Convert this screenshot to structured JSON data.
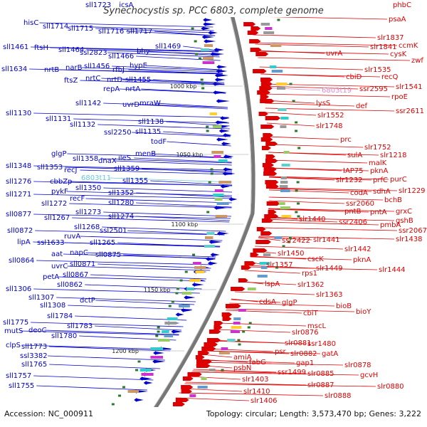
{
  "title": "Synechocystis sp. PCC 6803, complete genome",
  "accession_label": "Accession: NC_000911",
  "summary_label": "Topology: circular; Length: 3,573,470 bp; Genes: 3,222",
  "colors": {
    "minus_strand": "#0000cc",
    "plus_strand": "#dd0000",
    "rna": "#66c8e0",
    "pink": "#e088c8",
    "backbone": "#777777",
    "tick": "#2a7a2a"
  },
  "ruler": [
    "1000 kbp",
    "1050 kbp",
    "1100 kbp",
    "1150 kbp",
    "1200 kbp"
  ],
  "left_labels": [
    {
      "t": "sll1723",
      "v": "icsA",
      "type": "gene"
    },
    {
      "t": "hisC",
      "type": "gene"
    },
    {
      "t": "sll1714",
      "type": "gene"
    },
    {
      "t": "sll1715",
      "type": "gene"
    },
    {
      "t": "sll1716",
      "type": "gene"
    },
    {
      "t": "sll1717",
      "type": "gene"
    },
    {
      "t": "sll1461",
      "type": "gene"
    },
    {
      "t": "ftsH",
      "type": "gene"
    },
    {
      "t": "sll1464",
      "type": "gene"
    },
    {
      "t": "ssl2823",
      "type": "gene"
    },
    {
      "t": "sll1466",
      "type": "gene"
    },
    {
      "t": "bhy",
      "type": "gene"
    },
    {
      "t": "sll1469",
      "type": "gene"
    },
    {
      "t": "sll1634",
      "type": "gene"
    },
    {
      "t": "nrtB",
      "type": "gene"
    },
    {
      "t": "narB",
      "type": "gene"
    },
    {
      "t": "sll1456",
      "type": "gene"
    },
    {
      "t": "rfbJ",
      "type": "gene"
    },
    {
      "t": "hypE",
      "type": "gene"
    },
    {
      "t": "ftsZ",
      "type": "gene"
    },
    {
      "t": "nrtC",
      "type": "gene"
    },
    {
      "t": "nrtD",
      "type": "gene"
    },
    {
      "t": "sll1455",
      "type": "gene"
    },
    {
      "t": "repA",
      "type": "gene"
    },
    {
      "t": "nrtA",
      "type": "gene"
    },
    {
      "t": "sll1142",
      "type": "gene"
    },
    {
      "t": "uvrD",
      "type": "gene"
    },
    {
      "t": "mraW",
      "type": "gene"
    },
    {
      "t": "sll1130",
      "type": "gene"
    },
    {
      "t": "sll1131",
      "type": "gene"
    },
    {
      "t": "sll1132",
      "type": "gene"
    },
    {
      "t": "ssl2250",
      "type": "gene"
    },
    {
      "t": "sll1138",
      "type": "gene"
    },
    {
      "t": "sll1135",
      "type": "gene"
    },
    {
      "t": "todF",
      "type": "gene"
    },
    {
      "t": "menB",
      "type": "gene"
    },
    {
      "t": "glgP",
      "type": "gene"
    },
    {
      "t": "sll1358",
      "type": "gene"
    },
    {
      "t": "dnaX",
      "type": "gene"
    },
    {
      "t": "ileS",
      "type": "gene"
    },
    {
      "t": "sll1348",
      "type": "gene"
    },
    {
      "t": "sll1353",
      "type": "gene"
    },
    {
      "t": "recJ",
      "type": "gene"
    },
    {
      "t": "sll1359",
      "type": "gene"
    },
    {
      "t": "sll1276",
      "type": "gene"
    },
    {
      "t": "cbbZp",
      "type": "gene"
    },
    {
      "t": "6803t11",
      "type": "rna"
    },
    {
      "t": "sll1355",
      "type": "gene"
    },
    {
      "t": "sll1271",
      "type": "gene"
    },
    {
      "t": "pykF",
      "type": "gene"
    },
    {
      "t": "sll1350",
      "type": "gene"
    },
    {
      "t": "sll1352",
      "type": "gene"
    },
    {
      "t": "recF",
      "type": "gene"
    },
    {
      "t": "sll1280",
      "type": "gene"
    },
    {
      "t": "sll1272",
      "type": "gene"
    },
    {
      "t": "sll1273",
      "type": "gene"
    },
    {
      "t": "sll1274",
      "type": "gene"
    },
    {
      "t": "sll0877",
      "type": "gene"
    },
    {
      "t": "sll1267",
      "type": "gene"
    },
    {
      "t": "sll1268",
      "type": "gene"
    },
    {
      "t": "ssl2501",
      "type": "gene"
    },
    {
      "t": "sll0872",
      "type": "gene"
    },
    {
      "t": "ruvA",
      "type": "gene"
    },
    {
      "t": "lipA",
      "type": "gene"
    },
    {
      "t": "ssl1633",
      "type": "gene"
    },
    {
      "t": "sll1265",
      "type": "gene"
    },
    {
      "t": "aat",
      "type": "gene"
    },
    {
      "t": "napC",
      "type": "gene"
    },
    {
      "t": "sll0875",
      "type": "gene"
    },
    {
      "t": "sll0864",
      "type": "gene"
    },
    {
      "t": "uvrC",
      "type": "gene"
    },
    {
      "t": "sll0871",
      "type": "gene"
    },
    {
      "t": "sll0867",
      "type": "gene"
    },
    {
      "t": "petA",
      "type": "gene"
    },
    {
      "t": "sll0862",
      "type": "gene"
    },
    {
      "t": "sll1306",
      "type": "gene"
    },
    {
      "t": "sll1307",
      "type": "gene"
    },
    {
      "t": "dctP",
      "type": "gene"
    },
    {
      "t": "sll1308",
      "type": "gene"
    },
    {
      "t": "sll1784",
      "type": "gene"
    },
    {
      "t": "sll1775",
      "type": "gene"
    },
    {
      "t": "sll1783",
      "type": "gene"
    },
    {
      "t": "mutS",
      "type": "gene"
    },
    {
      "t": "deoC",
      "type": "gene"
    },
    {
      "t": "sll1780",
      "type": "gene"
    },
    {
      "t": "clpS",
      "type": "gene"
    },
    {
      "t": "sll1773",
      "type": "gene"
    },
    {
      "t": "ssl3382",
      "type": "gene"
    },
    {
      "t": "sll1765",
      "type": "gene"
    },
    {
      "t": "sll1757",
      "type": "gene"
    },
    {
      "t": "sll1755",
      "type": "gene"
    }
  ],
  "right_labels": [
    {
      "t": "phbC",
      "type": "gene"
    },
    {
      "t": "psaA",
      "type": "gene"
    },
    {
      "t": "slr1837",
      "type": "gene"
    },
    {
      "t": "slr1841",
      "type": "gene"
    },
    {
      "t": "ccmK",
      "type": "gene"
    },
    {
      "t": "cysK",
      "type": "gene"
    },
    {
      "t": "uvrA",
      "type": "gene"
    },
    {
      "t": "zwf",
      "type": "gene"
    },
    {
      "t": "slr1535",
      "type": "gene"
    },
    {
      "t": "cbiD",
      "type": "gene"
    },
    {
      "t": "recQ",
      "type": "gene"
    },
    {
      "t": "slr1541",
      "type": "gene"
    },
    {
      "t": "6803t19",
      "type": "pink"
    },
    {
      "t": "ssr2595",
      "type": "gene"
    },
    {
      "t": "rpoE",
      "type": "gene"
    },
    {
      "t": "lysS",
      "type": "gene"
    },
    {
      "t": "def",
      "type": "gene"
    },
    {
      "t": "ssr2611",
      "type": "gene"
    },
    {
      "t": "slr1552",
      "type": "gene"
    },
    {
      "t": "slr1748",
      "type": "gene"
    },
    {
      "t": "prc",
      "type": "gene"
    },
    {
      "t": "slr1752",
      "type": "gene"
    },
    {
      "t": "sulA",
      "type": "gene"
    },
    {
      "t": "slr1218",
      "type": "gene"
    },
    {
      "t": "malK",
      "type": "gene"
    },
    {
      "t": "IAP75",
      "type": "gene"
    },
    {
      "t": "pknA",
      "type": "gene"
    },
    {
      "t": "purC",
      "type": "gene"
    },
    {
      "t": "slr1232",
      "type": "gene"
    },
    {
      "t": "prfC",
      "type": "gene"
    },
    {
      "t": "codA",
      "type": "gene"
    },
    {
      "t": "sdhA",
      "type": "gene"
    },
    {
      "t": "slr1229",
      "type": "gene"
    },
    {
      "t": "bchB",
      "type": "gene"
    },
    {
      "t": "ssr2060",
      "type": "gene"
    },
    {
      "t": "pntB",
      "type": "gene"
    },
    {
      "t": "pntA",
      "type": "gene"
    },
    {
      "t": "grxC",
      "type": "gene"
    },
    {
      "t": "gshB",
      "type": "gene"
    },
    {
      "t": "slr1440",
      "type": "gene"
    },
    {
      "t": "ssr2406",
      "type": "gene"
    },
    {
      "t": "pmbA",
      "type": "gene"
    },
    {
      "t": "ssr2067",
      "type": "gene"
    },
    {
      "t": "slr1438",
      "type": "gene"
    },
    {
      "t": "ssr2422",
      "type": "gene"
    },
    {
      "t": "slr1441",
      "type": "gene"
    },
    {
      "t": "slr1442",
      "type": "gene"
    },
    {
      "t": "slr1450",
      "type": "gene"
    },
    {
      "t": "cscK",
      "type": "gene"
    },
    {
      "t": "pknA",
      "type": "gene"
    },
    {
      "t": "slr1357",
      "type": "gene"
    },
    {
      "t": "slr1449",
      "type": "gene"
    },
    {
      "t": "slr1444",
      "type": "gene"
    },
    {
      "t": "rps1",
      "type": "gene"
    },
    {
      "t": "lspA",
      "type": "gene"
    },
    {
      "t": "slr1362",
      "type": "gene"
    },
    {
      "t": "slr1363",
      "type": "gene"
    },
    {
      "t": "cdsA",
      "type": "gene"
    },
    {
      "t": "glgP",
      "type": "gene"
    },
    {
      "t": "bioB",
      "type": "gene"
    },
    {
      "t": "cbiT",
      "type": "gene"
    },
    {
      "t": "bioY",
      "type": "gene"
    },
    {
      "t": "mscL",
      "type": "gene"
    },
    {
      "t": "slr0876",
      "type": "gene"
    },
    {
      "t": "slr0881",
      "type": "gene"
    },
    {
      "t": "ssr1480",
      "type": "gene"
    },
    {
      "t": "psr",
      "type": "gene"
    },
    {
      "t": "slr0882",
      "type": "gene"
    },
    {
      "t": "gatA",
      "type": "gene"
    },
    {
      "t": "amiA",
      "type": "gene"
    },
    {
      "t": "slr0878",
      "type": "gene"
    },
    {
      "t": "fabG",
      "type": "gene"
    },
    {
      "t": "gap1",
      "type": "gene"
    },
    {
      "t": "psbN",
      "type": "gene"
    },
    {
      "t": "ssr1499",
      "type": "gene"
    },
    {
      "t": "slr0885",
      "type": "gene"
    },
    {
      "t": "gcvH",
      "type": "gene"
    },
    {
      "t": "slr1403",
      "type": "gene"
    },
    {
      "t": "slr0887",
      "type": "gene"
    },
    {
      "t": "slr0880",
      "type": "gene"
    },
    {
      "t": "slr1410",
      "type": "gene"
    },
    {
      "t": "slr0888",
      "type": "gene"
    },
    {
      "t": "slr1406",
      "type": "gene"
    }
  ]
}
